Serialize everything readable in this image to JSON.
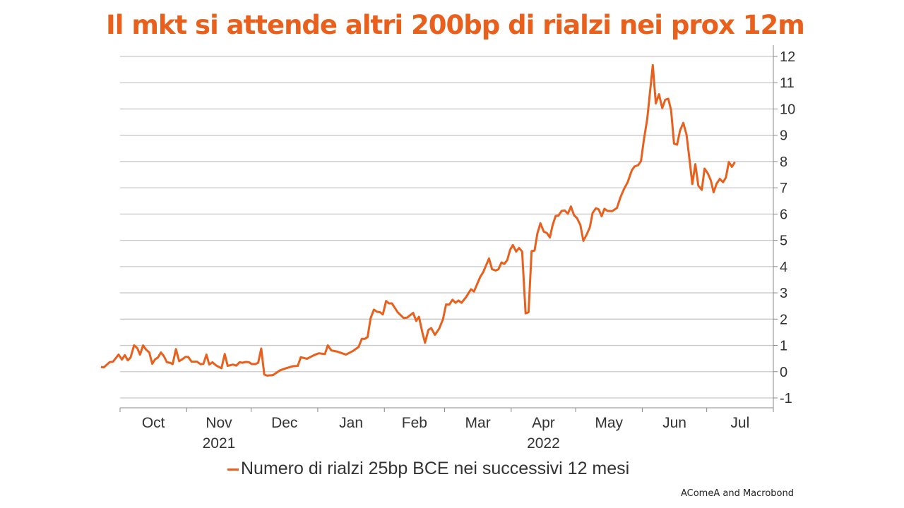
{
  "title": "Il mkt si attende altri 200bp di rialzi nei prox 12m",
  "source": "AComeA and Macrobond",
  "colors": {
    "line": "#e8601c",
    "grid": "#c8c8c8",
    "axis": "#888888",
    "text": "#333333"
  },
  "chart_data": {
    "type": "line",
    "title": "Il mkt si attende altri 200bp di rialzi nei prox 12m",
    "xlabel": "",
    "ylabel": "",
    "x_unit": "days since 2021-10-01",
    "xlim": [
      -9,
      304
    ],
    "ylim": [
      -1,
      12
    ],
    "yticks": [
      -1,
      0,
      1,
      2,
      3,
      4,
      5,
      6,
      7,
      8,
      9,
      10,
      11,
      12
    ],
    "y_axis_side": "right",
    "grid": true,
    "legend_position": "bottom",
    "month_boundaries": [
      0,
      31,
      61,
      92,
      123,
      151,
      182,
      212,
      243,
      273,
      304
    ],
    "month_labels": [
      "Oct",
      "Nov",
      "Dec",
      "Jan",
      "Feb",
      "Mar",
      "Apr",
      "May",
      "Jun",
      "Jul"
    ],
    "year_labels": [
      {
        "label": "2021",
        "month_index": 1
      },
      {
        "label": "2022",
        "month_index": 6
      }
    ],
    "series": [
      {
        "name": "Numero di rialzi 25bp BCE nei successivi 12 mesi",
        "x": [
          -8.9,
          -7.6,
          -4.9,
          -3.3,
          -0.7,
          0.9,
          2.2,
          3.6,
          4.9,
          6.5,
          8,
          9.3,
          10.7,
          12,
          13.6,
          15,
          16.3,
          17.6,
          19,
          20.4,
          21.8,
          23.2,
          24.5,
          26,
          27.5,
          28.9,
          30.4,
          31.7,
          33.3,
          35.8,
          37.5,
          38.8,
          40.2,
          41.5,
          43,
          44.8,
          47.2,
          48.7,
          50.1,
          52.5,
          54.1,
          55.6,
          56.9,
          58.5,
          60,
          61.3,
          62.9,
          64.3,
          65.7,
          67.1,
          68.4,
          71.2,
          74.4,
          77.2,
          80.5,
          82.7,
          84.1,
          87,
          90.3,
          92.5,
          95.3,
          96.7,
          98.3,
          100.8,
          105.1,
          108.4,
          111,
          112.5,
          113.9,
          115.2,
          116.6,
          118.1,
          119.6,
          121,
          122.3,
          123.8,
          125.1,
          126.5,
          129.2,
          132,
          133.6,
          136.4,
          137.8,
          139.1,
          140.6,
          141.9,
          143.5,
          144.8,
          146.5,
          148.5,
          150.3,
          151.7,
          153.2,
          154.7,
          156.1,
          157.5,
          158.9,
          161.1,
          163.3,
          164.7,
          167.6,
          169,
          171.7,
          173.1,
          174.8,
          176.1,
          177.5,
          178.8,
          180.2,
          181.5,
          182.8,
          184.3,
          185.7,
          187.1,
          188.7,
          190.1,
          191.5,
          192.9,
          194.2,
          195.6,
          197.2,
          198.6,
          200,
          201.3,
          202.7,
          204,
          205.5,
          206.9,
          208.4,
          209.8,
          211.3,
          212.6,
          214.2,
          215.6,
          217,
          218.6,
          219.9,
          221.4,
          222.7,
          224.1,
          225.4,
          226.8,
          229,
          231.2,
          232.9,
          234.5,
          236.2,
          238.1,
          239.4,
          241.1,
          242.4,
          243.8,
          245.3,
          247.9,
          249.3,
          250.8,
          252.3,
          253.7,
          255.1,
          256.4,
          257.8,
          259.2,
          260.6,
          262.1,
          263.6,
          265,
          266.3,
          267.7,
          269.1,
          270.7,
          272,
          273.5,
          274.9,
          276.2,
          277.6,
          279.1,
          280.6,
          281.9,
          283.3,
          284.7,
          286.1
        ],
        "y": [
          0.18,
          0.16,
          0.36,
          0.38,
          0.65,
          0.46,
          0.63,
          0.43,
          0.54,
          1.0,
          0.9,
          0.65,
          1.0,
          0.85,
          0.73,
          0.3,
          0.47,
          0.54,
          0.73,
          0.59,
          0.36,
          0.34,
          0.29,
          0.86,
          0.4,
          0.47,
          0.56,
          0.56,
          0.38,
          0.38,
          0.28,
          0.3,
          0.65,
          0.27,
          0.36,
          0.23,
          0.13,
          0.67,
          0.22,
          0.27,
          0.23,
          0.36,
          0.34,
          0.37,
          0.36,
          0.29,
          0.29,
          0.34,
          0.88,
          -0.11,
          -0.15,
          -0.13,
          0.05,
          0.13,
          0.21,
          0.22,
          0.55,
          0.49,
          0.63,
          0.7,
          0.67,
          1.0,
          0.81,
          0.77,
          0.65,
          0.79,
          0.94,
          1.25,
          1.25,
          1.32,
          2.04,
          2.36,
          2.28,
          2.26,
          2.18,
          2.69,
          2.6,
          2.6,
          2.26,
          2.04,
          2.06,
          2.24,
          1.93,
          2.09,
          1.52,
          1.1,
          1.59,
          1.66,
          1.4,
          1.64,
          2.0,
          2.56,
          2.55,
          2.74,
          2.62,
          2.71,
          2.62,
          2.85,
          3.14,
          3.05,
          3.61,
          3.79,
          4.31,
          3.9,
          3.85,
          3.9,
          4.16,
          4.1,
          4.25,
          4.64,
          4.82,
          4.57,
          4.71,
          4.57,
          2.22,
          2.26,
          4.59,
          4.61,
          5.26,
          5.65,
          5.33,
          5.28,
          5.11,
          5.58,
          5.93,
          5.94,
          6.12,
          6.14,
          6.01,
          6.29,
          5.95,
          5.85,
          5.58,
          4.98,
          5.2,
          5.49,
          6.04,
          6.22,
          6.18,
          5.92,
          6.2,
          6.12,
          6.11,
          6.23,
          6.65,
          6.95,
          7.21,
          7.66,
          7.81,
          7.86,
          8.02,
          8.85,
          9.61,
          11.67,
          10.21,
          10.56,
          10.03,
          10.35,
          10.39,
          9.96,
          8.68,
          8.64,
          9.18,
          9.47,
          9.02,
          8.08,
          7.14,
          7.9,
          7.08,
          6.92,
          7.73,
          7.55,
          7.28,
          6.83,
          7.16,
          7.34,
          7.21,
          7.39,
          7.98,
          7.8,
          7.98
        ]
      }
    ]
  }
}
